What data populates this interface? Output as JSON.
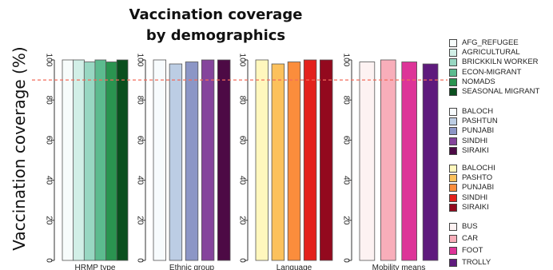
{
  "title_lines": [
    "Vaccination coverage",
    "by demographics"
  ],
  "ylabel": "Vaccination coverage (%)",
  "chart_data": [
    {
      "type": "bar",
      "xlabel": "HRMP type",
      "ylim": [
        0,
        100
      ],
      "yticks": [
        0,
        20,
        40,
        60,
        80,
        100
      ],
      "reference_line": 90,
      "categories": [
        "AFG_REFUGEE",
        "AGRICULTURAL",
        "BRICKKILN WORKER",
        "ECON-MIGRANT",
        "NOMADS",
        "SEASONAL MIGRANT"
      ],
      "values": [
        100,
        100,
        99,
        100,
        99,
        100
      ],
      "colors": [
        "#f7fcfb",
        "#d2efe7",
        "#98d7c2",
        "#5cbb8f",
        "#2a9450",
        "#0a4f1e"
      ]
    },
    {
      "type": "bar",
      "xlabel": "Ethnic group",
      "ylim": [
        0,
        100
      ],
      "yticks": [
        0,
        20,
        40,
        60,
        80,
        100
      ],
      "reference_line": 90,
      "categories": [
        "BALOCH",
        "PASHTUN",
        "PUNJABI",
        "SINDHI",
        "SIRAIKI"
      ],
      "values": [
        100,
        98,
        99,
        100,
        100
      ],
      "colors": [
        "#f7fbfd",
        "#bccde4",
        "#8c96c6",
        "#85449c",
        "#4d0a45"
      ]
    },
    {
      "type": "bar",
      "xlabel": "Language",
      "ylim": [
        0,
        100
      ],
      "yticks": [
        0,
        20,
        40,
        60,
        80,
        100
      ],
      "reference_line": 90,
      "categories": [
        "BALOCHI",
        "PASHTO",
        "PUNJABI",
        "SINDHI",
        "SIRAIKI"
      ],
      "values": [
        100,
        98,
        99,
        100,
        100
      ],
      "colors": [
        "#fff7bd",
        "#fcc15c",
        "#fb8d3c",
        "#e3211c",
        "#93091e"
      ]
    },
    {
      "type": "bar",
      "xlabel": "Mobility means",
      "ylim": [
        0,
        100
      ],
      "yticks": [
        0,
        20,
        40,
        60,
        80,
        100
      ],
      "reference_line": 90,
      "categories": [
        "BUS",
        "CAR",
        "FOOT",
        "TROLLY"
      ],
      "values": [
        99,
        100,
        99,
        98
      ],
      "colors": [
        "#fdf2f2",
        "#f8aeba",
        "#dd3498",
        "#5e1a7d"
      ]
    }
  ]
}
